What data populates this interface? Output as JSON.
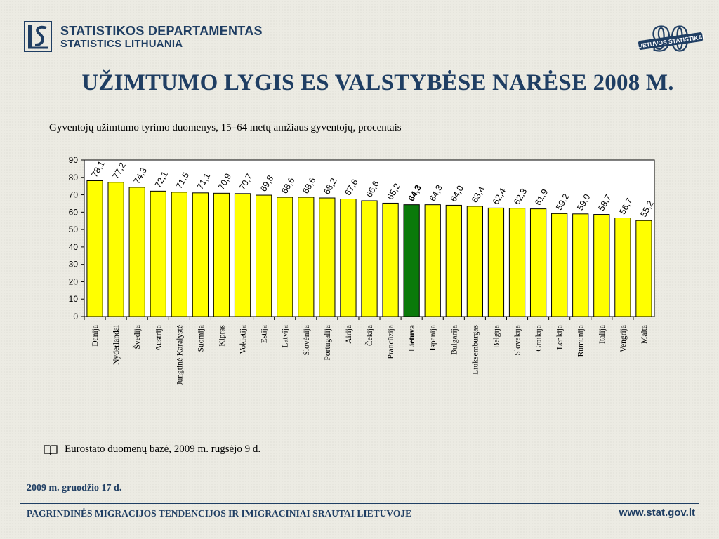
{
  "header": {
    "org_name_lt": "STATISTIKOS DEPARTAMENTAS",
    "org_name_en": "STATISTICS LITHUANIA",
    "jubilee_number": "90",
    "jubilee_text": "LIETUVOS STATISTIKAI",
    "accent_color": "#1f3e63"
  },
  "title": "UŽIMTUMO LYGIS  ES VALSTYBĖSE NARĖSE 2008 M.",
  "subtitle": "Gyventojų užimtumo tyrimo duomenys, 15–64 metų amžiaus gyventojų, procentais",
  "chart_data": {
    "type": "bar",
    "categories": [
      "Danija",
      "Nyderlandai",
      "Švedija",
      "Austrija",
      "Jungtinė Karalystė",
      "Suomija",
      "Kipras",
      "Vokietija",
      "Estija",
      "Latvija",
      "Slovėnija",
      "Portugalija",
      "Airija",
      "Čekija",
      "Prancūzija",
      "Lietuva",
      "Ispanija",
      "Bulgarija",
      "Liuksemburgas",
      "Belgija",
      "Slovakija",
      "Graikija",
      "Lenkija",
      "Rumunija",
      "Italija",
      "Vengrija",
      "Malta"
    ],
    "values": [
      78.1,
      77.2,
      74.3,
      72.1,
      71.5,
      71.1,
      70.9,
      70.7,
      69.8,
      68.6,
      68.6,
      68.2,
      67.6,
      66.6,
      65.2,
      64.3,
      64.3,
      64.0,
      63.4,
      62.4,
      62.3,
      61.9,
      59.2,
      59.0,
      58.7,
      56.7,
      55.2
    ],
    "data_labels": [
      "78,1",
      "77,2",
      "74,3",
      "72,1",
      "71,5",
      "71,1",
      "70,9",
      "70,7",
      "69,8",
      "68,6",
      "68,6",
      "68,2",
      "67,6",
      "66,6",
      "65,2",
      "64,3",
      "64,3",
      "64,0",
      "63,4",
      "62,4",
      "62,3",
      "61,9",
      "59,2",
      "59,0",
      "58,7",
      "56,7",
      "55,2"
    ],
    "highlight": "Lietuva",
    "y_ticks": [
      "0",
      "10",
      "20",
      "30",
      "40",
      "50",
      "60",
      "70",
      "80",
      "90"
    ],
    "ylim": [
      0,
      90
    ],
    "grid": false,
    "legend": "none",
    "bar_color": "#ffff00",
    "highlight_color": "#0a7a0a"
  },
  "source": "Eurostato duomenų bazė, 2009 m. rugsėjo 9 d.",
  "date": "2009 m. gruodžio 17 d.",
  "footer_title": "PAGRINDINĖS MIGRACIJOS TENDENCIJOS IR IMIGRACINIAI SRAUTAI LIETUVOJE",
  "website": "www.stat.gov.lt"
}
